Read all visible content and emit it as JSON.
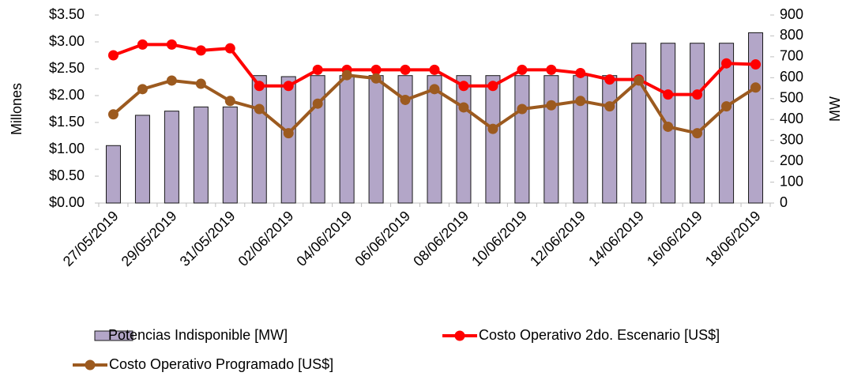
{
  "chart_data": {
    "type": "combo",
    "y_label": "Millones",
    "y2_label": "MW",
    "categories": [
      "27/05/2019",
      null,
      "29/05/2019",
      null,
      "31/05/2019",
      null,
      "02/06/2019",
      null,
      "04/06/2019",
      null,
      "06/06/2019",
      null,
      "08/06/2019",
      null,
      "10/06/2019",
      null,
      "12/06/2019",
      null,
      "14/06/2019",
      null,
      "16/06/2019",
      null,
      "18/06/2019"
    ],
    "ylim": [
      0,
      3.5
    ],
    "yticks": [
      {
        "value": 0,
        "label": "$0.00"
      },
      {
        "value": 0.5,
        "label": "$0.50"
      },
      {
        "value": 1,
        "label": "$1.00"
      },
      {
        "value": 1.5,
        "label": "$1.50"
      },
      {
        "value": 2,
        "label": "$2.00"
      },
      {
        "value": 2.5,
        "label": "$2.50"
      },
      {
        "value": 3,
        "label": "$3.00"
      },
      {
        "value": 3.5,
        "label": "$3.50"
      }
    ],
    "y2lim": [
      0,
      900
    ],
    "y2ticks": [
      0,
      100,
      200,
      300,
      400,
      500,
      600,
      700,
      800,
      900
    ],
    "series": [
      {
        "name": "Potencias Indisponible [MW]",
        "type": "bar",
        "axis": "y2",
        "color": "#b3a6c8",
        "values": [
          275,
          420,
          440,
          460,
          460,
          610,
          605,
          610,
          610,
          610,
          610,
          610,
          610,
          610,
          610,
          610,
          610,
          610,
          765,
          765,
          765,
          765,
          815
        ]
      },
      {
        "name": "Costo Operativo 2do. Escenario [US$]",
        "type": "line",
        "axis": "y",
        "color": "#ff0000",
        "values": [
          2.75,
          2.95,
          2.95,
          2.84,
          2.88,
          2.18,
          2.18,
          2.48,
          2.48,
          2.48,
          2.48,
          2.48,
          2.18,
          2.18,
          2.48,
          2.48,
          2.42,
          2.3,
          2.3,
          2.02,
          2.02,
          2.6,
          2.58
        ]
      },
      {
        "name": "Costo Operativo Programado [US$]",
        "type": "line",
        "axis": "y",
        "color": "#9c5a1f",
        "values": [
          1.65,
          2.12,
          2.28,
          2.22,
          1.9,
          1.75,
          1.3,
          1.85,
          2.38,
          2.32,
          1.92,
          2.12,
          1.78,
          1.38,
          1.75,
          1.82,
          1.9,
          1.8,
          2.28,
          1.42,
          1.3,
          1.8,
          2.15
        ]
      }
    ]
  }
}
